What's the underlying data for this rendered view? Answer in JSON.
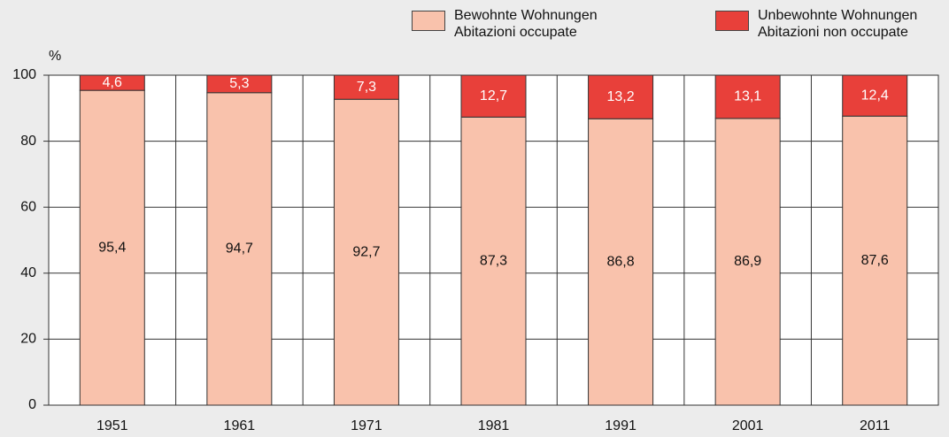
{
  "chart_data": {
    "type": "stacked_bar",
    "y_label": "%",
    "categories": [
      "1951",
      "1961",
      "1971",
      "1981",
      "1991",
      "2001",
      "2011"
    ],
    "series": [
      {
        "name": "Bewohnte Wohnungen\nAbitazioni occupate",
        "color": "#f9c2ac",
        "values": [
          95.4,
          94.7,
          92.7,
          87.3,
          86.8,
          86.9,
          87.6
        ],
        "value_labels": [
          "95,4",
          "94,7",
          "92,7",
          "87,3",
          "86,8",
          "86,9",
          "87,6"
        ]
      },
      {
        "name": "Unbewohnte Wohnungen\nAbitazioni non occupate",
        "color": "#e8403a",
        "values": [
          4.6,
          5.3,
          7.3,
          12.7,
          13.2,
          13.1,
          12.4
        ],
        "value_labels": [
          "4,6",
          "5,3",
          "7,3",
          "12,7",
          "13,2",
          "13,1",
          "12,4"
        ]
      }
    ],
    "ylim": [
      0,
      100
    ],
    "yticks": [
      0,
      20,
      40,
      60,
      80,
      100
    ],
    "grid": true
  }
}
